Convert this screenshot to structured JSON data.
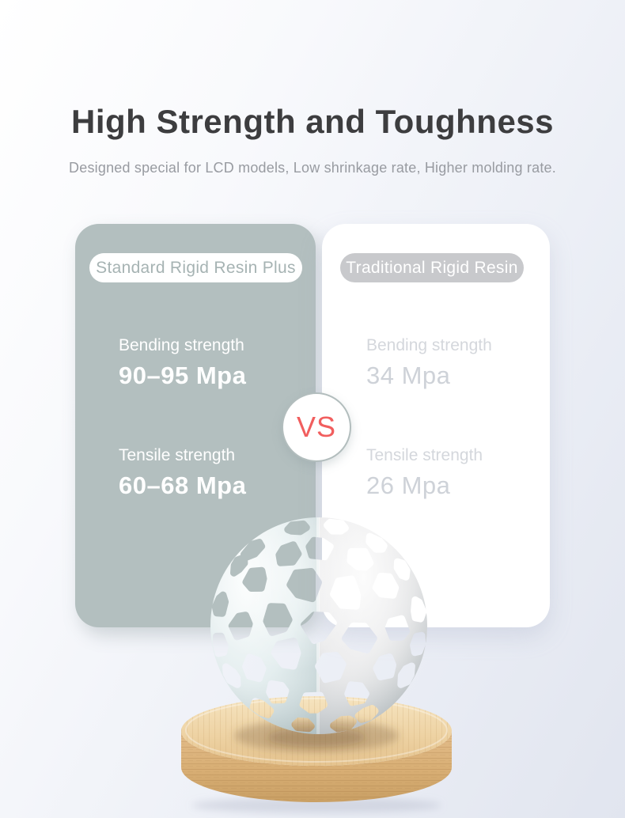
{
  "header": {
    "title": "High Strength and Toughness",
    "subtitle": "Designed special for LCD models, Low shrinkage rate, Higher molding rate."
  },
  "comparison": {
    "vs_label": "VS",
    "left_card": {
      "label": "Standard Rigid Resin Plus",
      "stats": [
        {
          "name": "Bending strength",
          "value": "90–95 Mpa"
        },
        {
          "name": "Tensile strength",
          "value": "60–68 Mpa"
        }
      ]
    },
    "right_card": {
      "label": "Traditional Rigid Resin",
      "stats": [
        {
          "name": "Bending strength",
          "value": "34 Mpa"
        },
        {
          "name": "Tensile strength",
          "value": "26 Mpa"
        }
      ]
    }
  },
  "figure": {
    "sphere_icon": "voronoi-lattice-sphere",
    "base_icon": "wooden-round-base"
  },
  "colors": {
    "page_bg_top": "#ffffff",
    "page_bg_bottom": "#e1e5ef",
    "title_text": "#3d3d3f",
    "subtitle_text": "#989ba1",
    "left_card_bg": "#b3bfbf",
    "right_card_bg": "#ffffff",
    "left_pill_bg": "#ffffff",
    "left_pill_text": "#a6b3b3",
    "right_pill_bg": "#c8c9cc",
    "right_pill_text": "#ffffff",
    "left_stat_text": "#ffffff",
    "right_stat_text": "#ced2d8",
    "vs_text": "#f15e5e",
    "vs_ring": "#b2bdbd",
    "wood_top": "#eed3a4",
    "wood_side": "#d8ae74"
  }
}
